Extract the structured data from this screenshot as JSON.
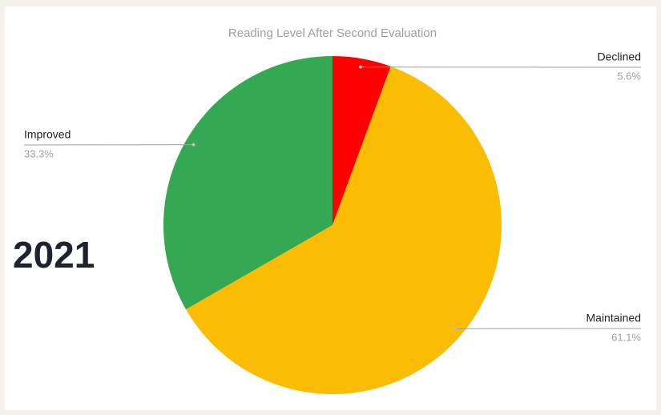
{
  "chart_data": {
    "type": "pie",
    "title": "Reading Level After Second Evaluation",
    "annotation": "2021",
    "categories": [
      "Declined",
      "Maintained",
      "Improved"
    ],
    "values": [
      5.6,
      61.1,
      33.3
    ],
    "value_labels": [
      "5.6%",
      "61.1%",
      "33.3%"
    ],
    "colors": [
      "#ff0000",
      "#fbbc04",
      "#34a853"
    ]
  }
}
